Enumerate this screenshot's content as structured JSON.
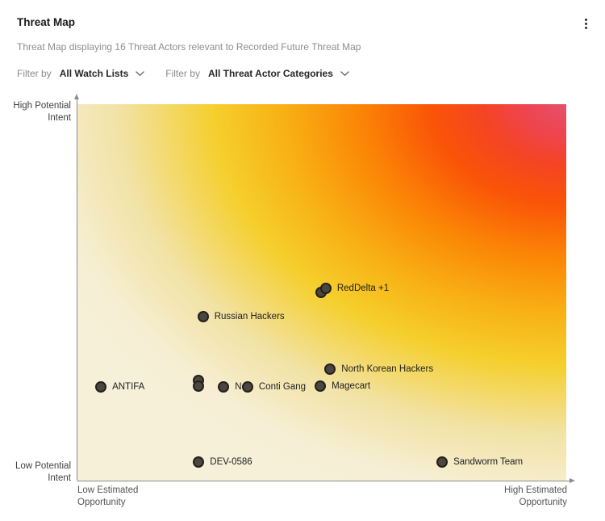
{
  "header": {
    "title": "Threat Map",
    "subtitle": "Threat Map displaying 16 Threat Actors relevant to Recorded Future Threat Map"
  },
  "icons": {
    "menu": "kebab-menu",
    "dropdown": "chevron-down"
  },
  "filters": [
    {
      "label": "Filter by",
      "value": "All Watch Lists"
    },
    {
      "label": "Filter by",
      "value": "All Threat Actor Categories"
    }
  ],
  "chart_data": {
    "type": "scatter",
    "actor_count": 16,
    "x_axis": {
      "min_label": "Low Estimated Opportunity",
      "max_label": "High Estimated Opportunity"
    },
    "y_axis": {
      "min_label": "Low Potential Intent",
      "max_label": "High Potential Intent"
    },
    "points": [
      {
        "label": "ANTIFA",
        "x": 4.8,
        "y": 24.9
      },
      {
        "label": "Russian Hackers",
        "x": 25.7,
        "y": 43.6
      },
      {
        "label": "",
        "x": 24.8,
        "y": 25.1,
        "extra": [
          [
            0,
            -7
          ]
        ]
      },
      {
        "label": "Ne",
        "x": 29.9,
        "y": 24.9
      },
      {
        "label": "Conti Gang",
        "x": 34.8,
        "y": 24.9
      },
      {
        "label": "Magecart",
        "x": 49.7,
        "y": 25.1
      },
      {
        "label": "North Korean Hackers",
        "x": 51.7,
        "y": 29.6
      },
      {
        "label": "RedDelta +1",
        "x": 50.8,
        "y": 51.1,
        "extra": [
          [
            -6,
            5
          ]
        ]
      },
      {
        "label": "DEV-0586",
        "x": 24.8,
        "y": 4.9
      },
      {
        "label": "Sandworm Team",
        "x": 74.6,
        "y": 4.9
      }
    ],
    "dot_color": "#4b4640",
    "dot_border_color": "#23201b",
    "axis_color": "#8c8c8c",
    "gradient": {
      "shape": "ellipse 120% 115% at 100% 0%",
      "stops": [
        {
          "color": "#e5506b",
          "at": "0%"
        },
        {
          "color": "#ee4550",
          "at": "7%"
        },
        {
          "color": "#f54424",
          "at": "14%"
        },
        {
          "color": "#fa5407",
          "at": "23%"
        },
        {
          "color": "#fb8406",
          "at": "35%"
        },
        {
          "color": "#f8b013",
          "at": "48%"
        },
        {
          "color": "#f5cf2c",
          "at": "60%"
        },
        {
          "color": "#f2e2a4",
          "at": "76%"
        },
        {
          "color": "#f6efd5",
          "at": "90%"
        },
        {
          "color": "#f6f0d9",
          "at": "100%"
        }
      ]
    }
  }
}
